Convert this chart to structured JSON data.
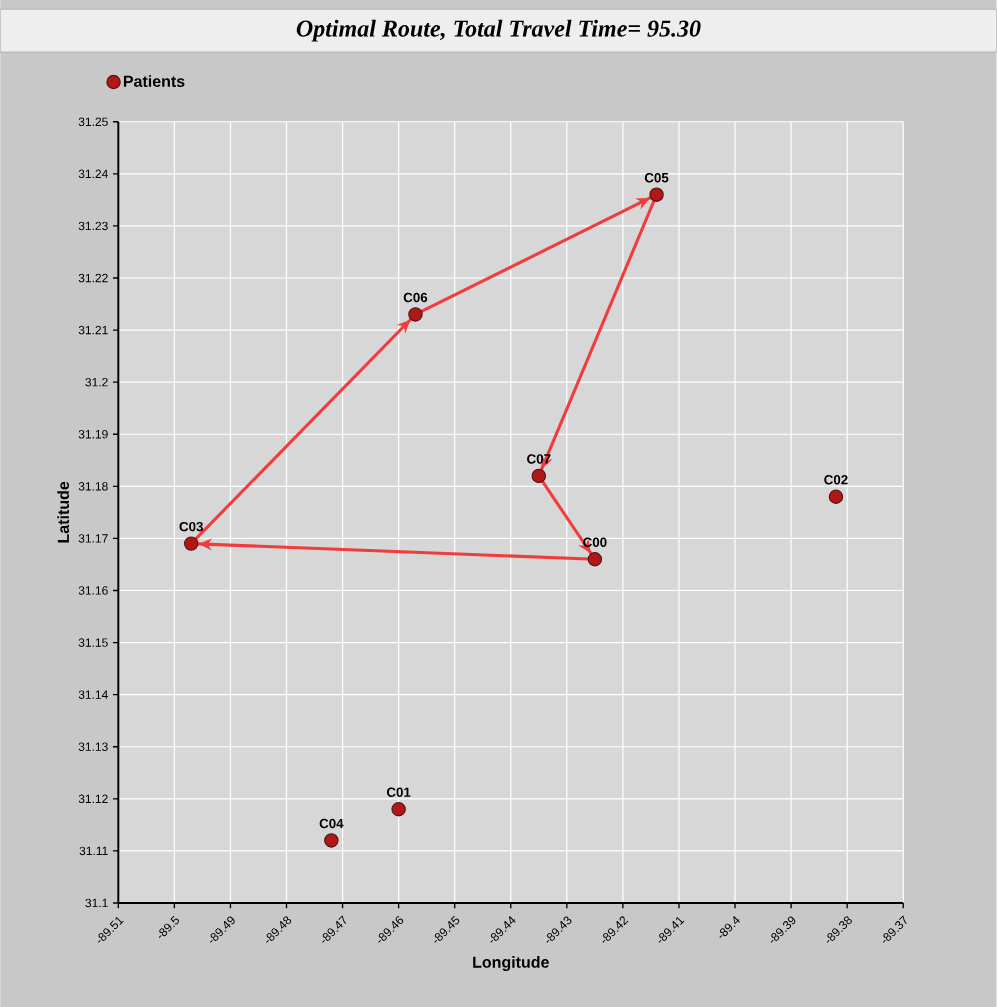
{
  "chart_data": {
    "type": "scatter",
    "title": "Optimal Route, Total Travel Time= 95.30",
    "xlabel": "Longitude",
    "ylabel": "Latitude",
    "xlim": [
      -89.51,
      -89.37
    ],
    "xticks": [
      -89.51,
      -89.5,
      -89.49,
      -89.48,
      -89.47,
      -89.46,
      -89.45,
      -89.44,
      -89.43,
      -89.42,
      -89.41,
      -89.4,
      -89.39,
      -89.38,
      -89.37
    ],
    "ylim": [
      31.1,
      31.25
    ],
    "yticks": [
      31.1,
      31.11,
      31.12,
      31.13,
      31.14,
      31.15,
      31.16,
      31.17,
      31.18,
      31.19,
      31.2,
      31.21,
      31.22,
      31.23,
      31.24,
      31.25
    ],
    "grid": true,
    "legend": "top left",
    "series": [
      {
        "name": "Patients",
        "marker": "circle",
        "color": "#b01818",
        "x": [
          -89.425,
          -89.46,
          -89.382,
          -89.497,
          -89.472,
          -89.414,
          -89.457,
          -89.435
        ],
        "values": [
          31.166,
          31.118,
          31.178,
          31.169,
          31.112,
          31.236,
          31.213,
          31.182
        ]
      },
      {
        "type": "line",
        "color": "#f03c3c",
        "line_style": "solid",
        "marker": "none",
        "x": [
          -89.425,
          -89.497
        ],
        "values": [
          31.166,
          31.169
        ]
      },
      {
        "type": "line",
        "color": "#f03c3c",
        "line_style": "solid",
        "marker": "none",
        "x": [
          -89.497,
          -89.457
        ],
        "values": [
          31.169,
          31.213
        ]
      },
      {
        "type": "line",
        "color": "#f03c3c",
        "line_style": "solid",
        "marker": "none",
        "x": [
          -89.457,
          -89.414
        ],
        "values": [
          31.213,
          31.236
        ]
      },
      {
        "type": "line",
        "color": "#f03c3c",
        "line_style": "solid",
        "marker": "none",
        "x": [
          -89.414,
          -89.435
        ],
        "values": [
          31.236,
          31.182
        ]
      },
      {
        "type": "line",
        "color": "#f03c3c",
        "line_style": "solid",
        "marker": "none",
        "x": [
          -89.435,
          -89.425
        ],
        "values": [
          31.182,
          31.166
        ]
      }
    ],
    "annotations": [
      {
        "text": "C00",
        "x": -89.425,
        "y": 31.166
      },
      {
        "text": "C01",
        "x": -89.46,
        "y": 31.118
      },
      {
        "text": "C02",
        "x": -89.382,
        "y": 31.178
      },
      {
        "text": "C03",
        "x": -89.497,
        "y": 31.169
      },
      {
        "text": "C04",
        "x": -89.472,
        "y": 31.112
      },
      {
        "text": "C05",
        "x": -89.414,
        "y": 31.236
      },
      {
        "text": "C06",
        "x": -89.457,
        "y": 31.213
      },
      {
        "text": "C07",
        "x": -89.435,
        "y": 31.182
      }
    ]
  }
}
